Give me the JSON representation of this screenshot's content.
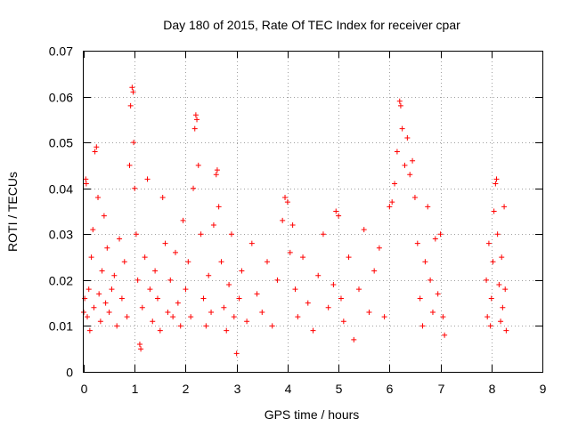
{
  "chart_data": {
    "type": "scatter",
    "title": "Day 180 of 2015, Rate Of TEC Index for receiver cpar",
    "xlabel": "GPS time / hours",
    "ylabel": "ROTI / TECUs",
    "xlim": [
      0,
      9
    ],
    "ylim": [
      0,
      0.07
    ],
    "x_ticks": [
      "0",
      "1",
      "2",
      "3",
      "4",
      "5",
      "6",
      "7",
      "8",
      "9"
    ],
    "y_ticks": [
      "0",
      "0.01",
      "0.02",
      "0.03",
      "0.04",
      "0.05",
      "0.06",
      "0.07"
    ],
    "grid": true,
    "marker": "+",
    "color": "#ff0000",
    "series": [
      {
        "name": "ROTI",
        "points": [
          [
            0.0,
            0.013
          ],
          [
            0.02,
            0.016
          ],
          [
            0.04,
            0.042
          ],
          [
            0.05,
            0.041
          ],
          [
            0.07,
            0.012
          ],
          [
            0.1,
            0.018
          ],
          [
            0.12,
            0.009
          ],
          [
            0.15,
            0.025
          ],
          [
            0.18,
            0.031
          ],
          [
            0.2,
            0.014
          ],
          [
            0.22,
            0.048
          ],
          [
            0.25,
            0.049
          ],
          [
            0.28,
            0.038
          ],
          [
            0.3,
            0.017
          ],
          [
            0.33,
            0.011
          ],
          [
            0.36,
            0.022
          ],
          [
            0.4,
            0.034
          ],
          [
            0.43,
            0.015
          ],
          [
            0.46,
            0.027
          ],
          [
            0.5,
            0.013
          ],
          [
            0.55,
            0.018
          ],
          [
            0.6,
            0.021
          ],
          [
            0.65,
            0.01
          ],
          [
            0.7,
            0.029
          ],
          [
            0.75,
            0.016
          ],
          [
            0.8,
            0.024
          ],
          [
            0.85,
            0.012
          ],
          [
            0.9,
            0.045
          ],
          [
            0.92,
            0.058
          ],
          [
            0.95,
            0.062
          ],
          [
            0.97,
            0.061
          ],
          [
            0.98,
            0.05
          ],
          [
            1.0,
            0.04
          ],
          [
            1.03,
            0.03
          ],
          [
            1.06,
            0.02
          ],
          [
            1.1,
            0.006
          ],
          [
            1.12,
            0.005
          ],
          [
            1.15,
            0.014
          ],
          [
            1.2,
            0.025
          ],
          [
            1.25,
            0.042
          ],
          [
            1.3,
            0.018
          ],
          [
            1.35,
            0.011
          ],
          [
            1.4,
            0.022
          ],
          [
            1.45,
            0.016
          ],
          [
            1.5,
            0.009
          ],
          [
            1.55,
            0.038
          ],
          [
            1.6,
            0.028
          ],
          [
            1.65,
            0.013
          ],
          [
            1.7,
            0.02
          ],
          [
            1.75,
            0.012
          ],
          [
            1.8,
            0.026
          ],
          [
            1.85,
            0.015
          ],
          [
            1.9,
            0.01
          ],
          [
            1.95,
            0.033
          ],
          [
            2.0,
            0.018
          ],
          [
            2.05,
            0.024
          ],
          [
            2.1,
            0.012
          ],
          [
            2.15,
            0.04
          ],
          [
            2.18,
            0.053
          ],
          [
            2.2,
            0.056
          ],
          [
            2.22,
            0.055
          ],
          [
            2.25,
            0.045
          ],
          [
            2.3,
            0.03
          ],
          [
            2.35,
            0.016
          ],
          [
            2.4,
            0.01
          ],
          [
            2.45,
            0.021
          ],
          [
            2.5,
            0.013
          ],
          [
            2.55,
            0.032
          ],
          [
            2.6,
            0.043
          ],
          [
            2.62,
            0.044
          ],
          [
            2.65,
            0.036
          ],
          [
            2.7,
            0.024
          ],
          [
            2.75,
            0.014
          ],
          [
            2.8,
            0.009
          ],
          [
            2.85,
            0.019
          ],
          [
            2.9,
            0.03
          ],
          [
            2.95,
            0.012
          ],
          [
            3.0,
            0.004
          ],
          [
            3.05,
            0.016
          ],
          [
            3.1,
            0.022
          ],
          [
            3.2,
            0.011
          ],
          [
            3.3,
            0.028
          ],
          [
            3.4,
            0.017
          ],
          [
            3.5,
            0.013
          ],
          [
            3.6,
            0.024
          ],
          [
            3.7,
            0.01
          ],
          [
            3.8,
            0.02
          ],
          [
            3.9,
            0.033
          ],
          [
            3.95,
            0.038
          ],
          [
            4.0,
            0.037
          ],
          [
            4.05,
            0.026
          ],
          [
            4.1,
            0.032
          ],
          [
            4.15,
            0.018
          ],
          [
            4.2,
            0.012
          ],
          [
            4.3,
            0.025
          ],
          [
            4.4,
            0.015
          ],
          [
            4.5,
            0.009
          ],
          [
            4.6,
            0.021
          ],
          [
            4.7,
            0.03
          ],
          [
            4.8,
            0.014
          ],
          [
            4.9,
            0.019
          ],
          [
            4.95,
            0.035
          ],
          [
            5.0,
            0.034
          ],
          [
            5.05,
            0.016
          ],
          [
            5.1,
            0.011
          ],
          [
            5.2,
            0.025
          ],
          [
            5.3,
            0.007
          ],
          [
            5.4,
            0.018
          ],
          [
            5.5,
            0.031
          ],
          [
            5.6,
            0.013
          ],
          [
            5.7,
            0.022
          ],
          [
            5.8,
            0.027
          ],
          [
            5.9,
            0.012
          ],
          [
            6.0,
            0.036
          ],
          [
            6.05,
            0.037
          ],
          [
            6.1,
            0.041
          ],
          [
            6.15,
            0.048
          ],
          [
            6.2,
            0.059
          ],
          [
            6.22,
            0.058
          ],
          [
            6.25,
            0.053
          ],
          [
            6.3,
            0.045
          ],
          [
            6.35,
            0.051
          ],
          [
            6.4,
            0.043
          ],
          [
            6.45,
            0.046
          ],
          [
            6.5,
            0.038
          ],
          [
            6.55,
            0.028
          ],
          [
            6.6,
            0.016
          ],
          [
            6.65,
            0.01
          ],
          [
            6.7,
            0.024
          ],
          [
            6.75,
            0.036
          ],
          [
            6.8,
            0.02
          ],
          [
            6.85,
            0.013
          ],
          [
            6.9,
            0.029
          ],
          [
            6.95,
            0.017
          ],
          [
            7.0,
            0.03
          ],
          [
            7.05,
            0.012
          ],
          [
            7.08,
            0.008
          ],
          [
            7.9,
            0.02
          ],
          [
            7.92,
            0.012
          ],
          [
            7.95,
            0.028
          ],
          [
            7.98,
            0.01
          ],
          [
            8.0,
            0.016
          ],
          [
            8.03,
            0.024
          ],
          [
            8.05,
            0.035
          ],
          [
            8.08,
            0.041
          ],
          [
            8.1,
            0.042
          ],
          [
            8.12,
            0.03
          ],
          [
            8.15,
            0.019
          ],
          [
            8.18,
            0.011
          ],
          [
            8.2,
            0.025
          ],
          [
            8.22,
            0.014
          ],
          [
            8.25,
            0.036
          ],
          [
            8.27,
            0.018
          ],
          [
            8.29,
            0.009
          ]
        ]
      }
    ]
  }
}
